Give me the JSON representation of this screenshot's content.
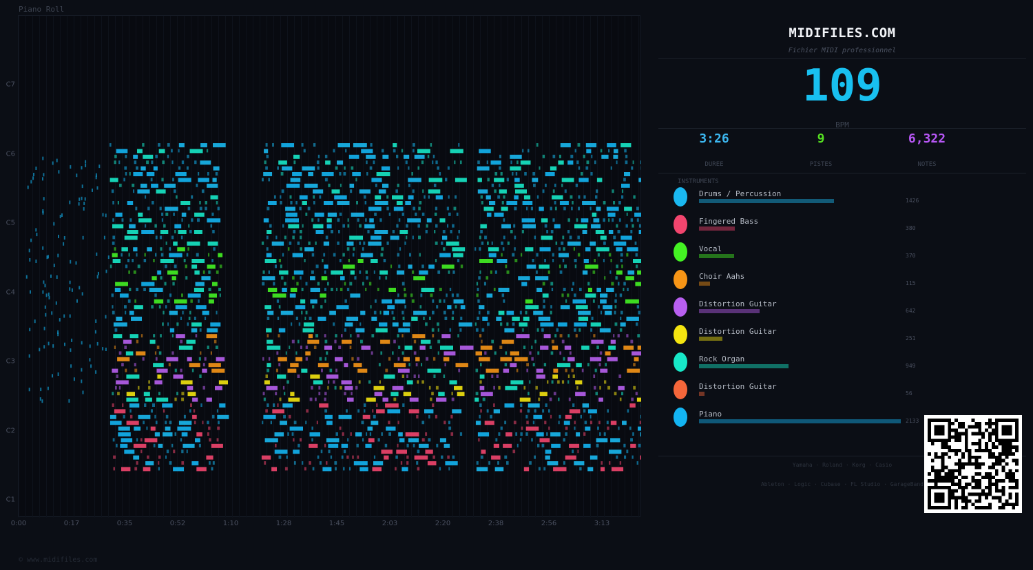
{
  "piano_roll": {
    "title": "Piano Roll",
    "y_labels": [
      "C7",
      "C6",
      "C5",
      "C4",
      "C3",
      "C2",
      "C1"
    ],
    "x_labels": [
      "0:00",
      "0:17",
      "0:35",
      "0:52",
      "1:10",
      "1:28",
      "1:45",
      "2:03",
      "2:20",
      "2:38",
      "2:56",
      "3:13"
    ],
    "copyright": "© www.midifiles.com"
  },
  "panel": {
    "site": "MIDIFILES.COM",
    "subtitle": "Fichier MIDI professionnel",
    "bpm": "109",
    "bpm_label": "BPM",
    "stats": [
      {
        "value": "3:26",
        "label": "DUREE",
        "color": "#3cb7f0"
      },
      {
        "value": "9",
        "label": "PISTES",
        "color": "#55e021"
      },
      {
        "value": "6,322",
        "label": "NOTES",
        "color": "#b757f5"
      }
    ],
    "instruments_heading": "INSTRUMENTS",
    "instruments": [
      {
        "name": "Drums / Percussion",
        "count": "1426",
        "color": "#1ab8f0"
      },
      {
        "name": "Fingered Bass",
        "count": "380",
        "color": "#f2456e"
      },
      {
        "name": "Vocal",
        "count": "370",
        "color": "#44f223"
      },
      {
        "name": "Choir Aahs",
        "count": "115",
        "color": "#f79516"
      },
      {
        "name": "Distortion Guitar",
        "count": "642",
        "color": "#b85ff0"
      },
      {
        "name": "Distortion Guitar",
        "count": "251",
        "color": "#f4e410"
      },
      {
        "name": "Rock Organ",
        "count": "949",
        "color": "#17e8c8"
      },
      {
        "name": "Distortion Guitar",
        "count": "56",
        "color": "#f5663a"
      },
      {
        "name": "Piano",
        "count": "2133",
        "color": "#13b4f2"
      }
    ],
    "brands_line1": "Yamaha · Roland · Korg · Casio",
    "brands_line2": "Ableton · Logic · Cubase · FL Studio · GarageBand"
  }
}
